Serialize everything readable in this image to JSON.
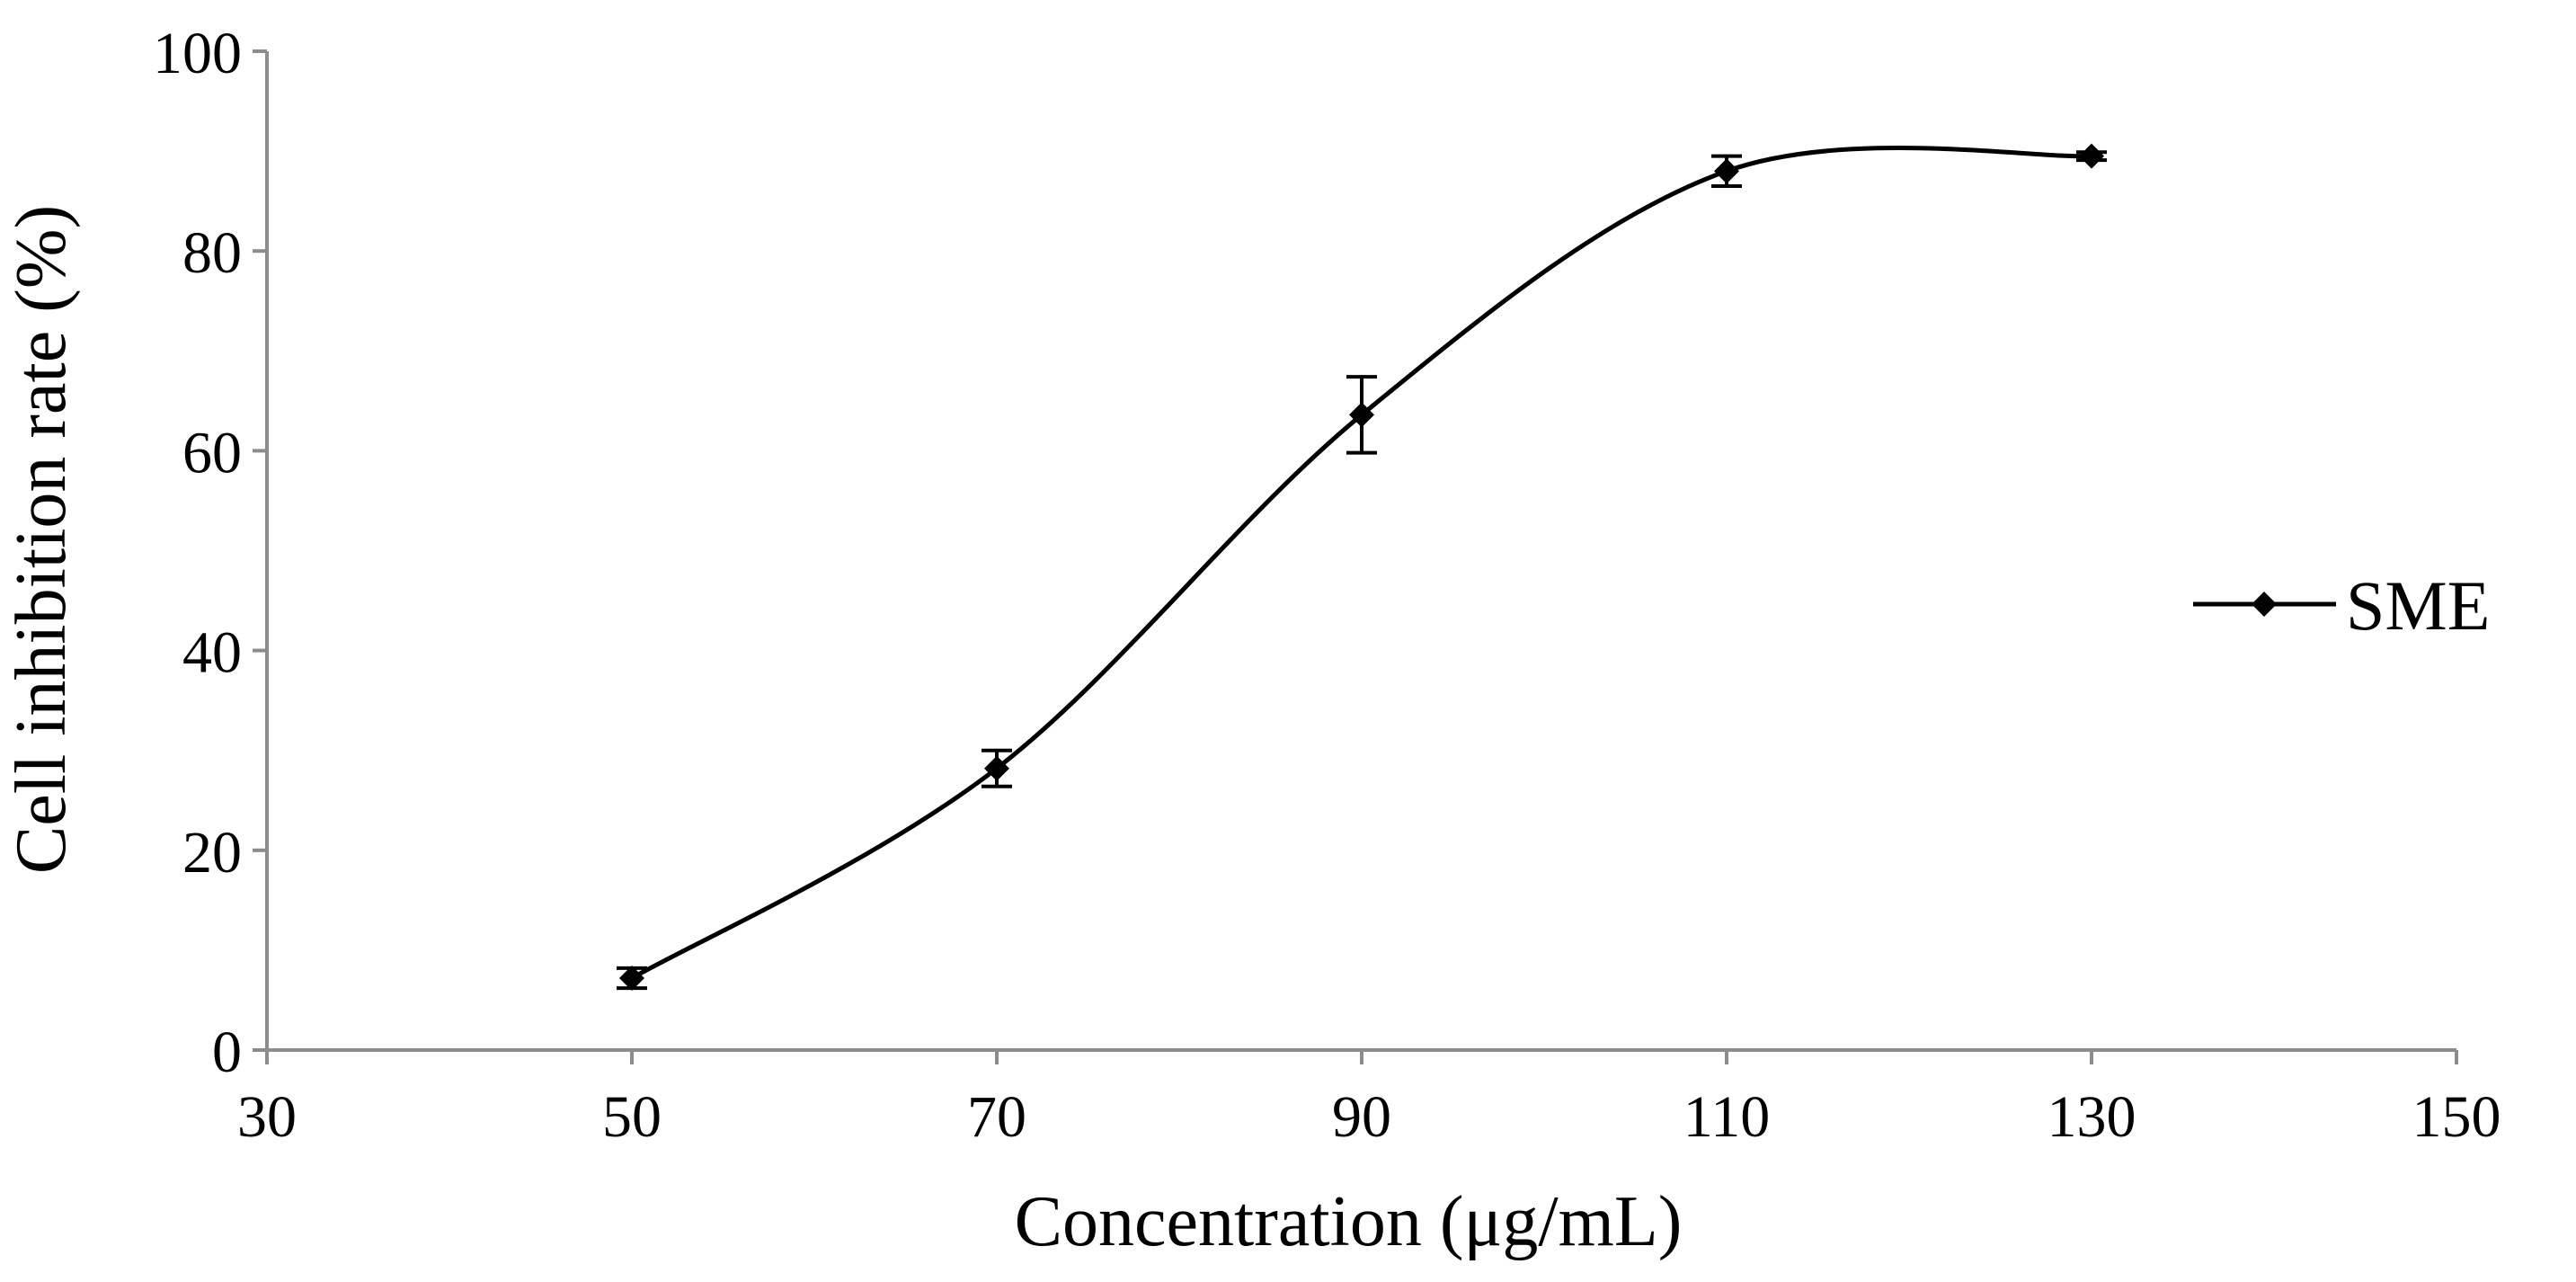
{
  "chart_data": {
    "type": "line",
    "title": "",
    "xlabel": "Concentration (μg/mL)",
    "ylabel": "Cell inhibition rate (%)",
    "xlim": [
      30,
      150
    ],
    "ylim": [
      0,
      100
    ],
    "xticks": [
      30,
      50,
      70,
      90,
      110,
      130,
      150
    ],
    "yticks": [
      0,
      20,
      40,
      60,
      80,
      100
    ],
    "grid": false,
    "legend_position": "right",
    "smooth": true,
    "series": [
      {
        "name": "SME",
        "color": "#000000",
        "marker": "diamond",
        "x": [
          50,
          70,
          90,
          110,
          130
        ],
        "y": [
          7.2,
          28.2,
          63.6,
          88.0,
          89.5
        ],
        "err": [
          1.0,
          1.8,
          3.8,
          1.5,
          0.4
        ]
      }
    ]
  }
}
